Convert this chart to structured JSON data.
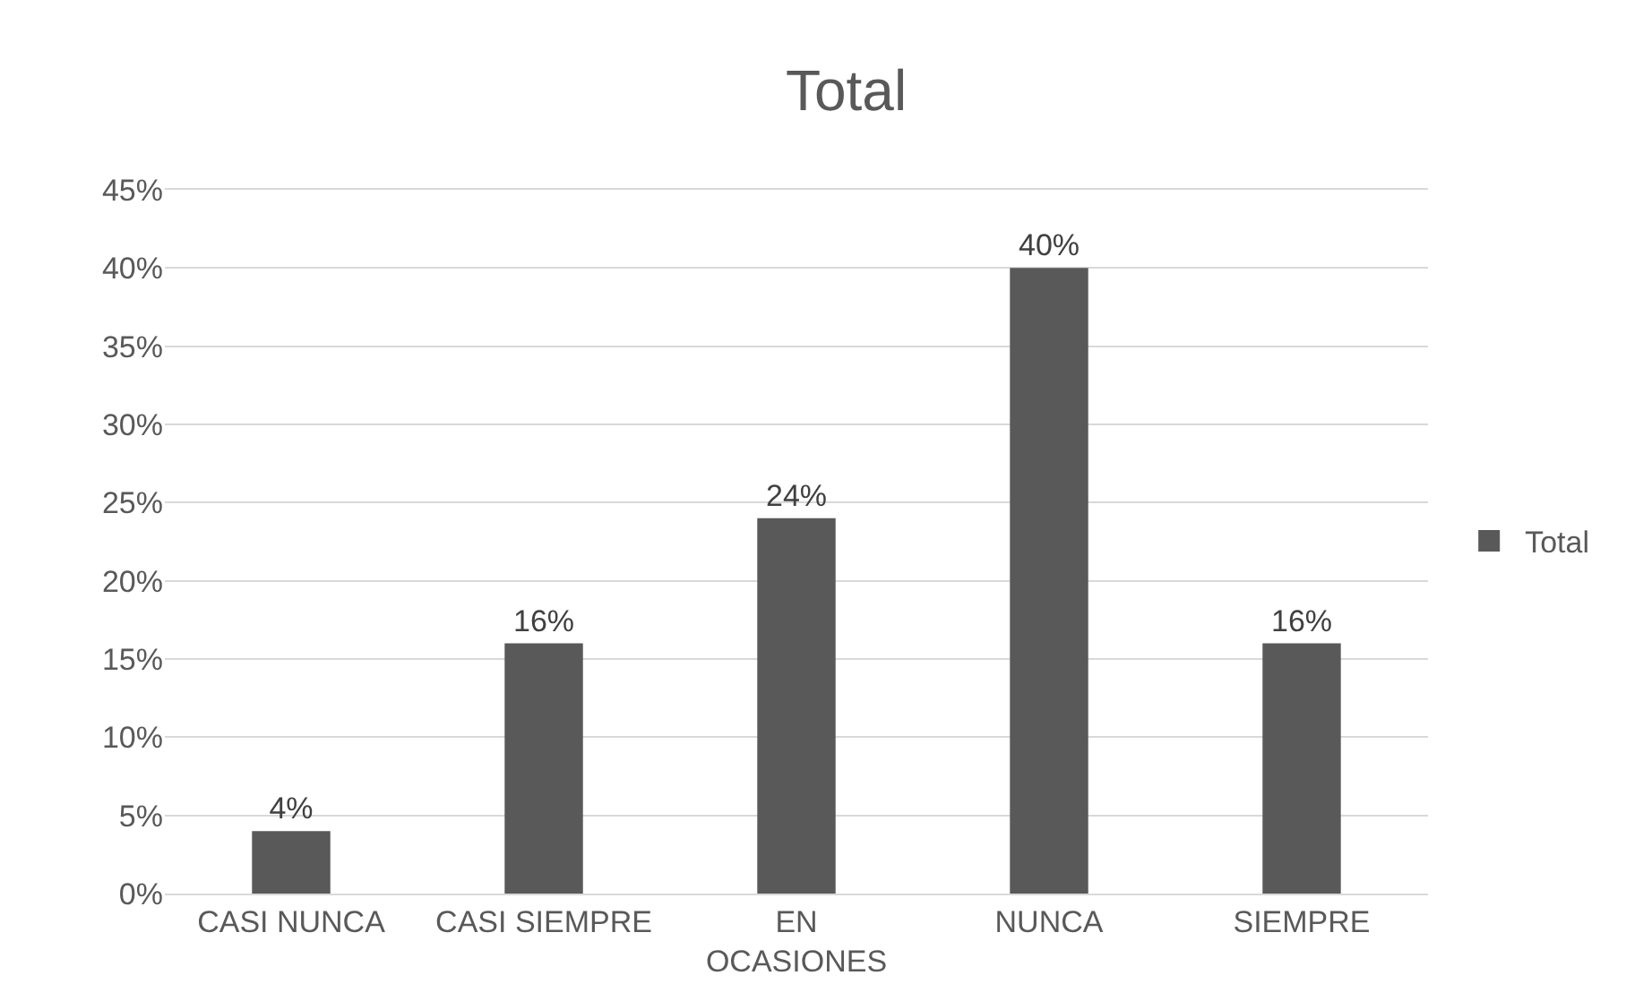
{
  "chart_data": {
    "type": "bar",
    "title": "Total",
    "categories": [
      "CASI NUNCA",
      "CASI SIEMPRE",
      "EN OCASIONES",
      "NUNCA",
      "SIEMPRE"
    ],
    "series": [
      {
        "name": "Total",
        "color": "#595959",
        "values": [
          4,
          16,
          24,
          40,
          16
        ],
        "value_labels": [
          "4%",
          "16%",
          "24%",
          "40%",
          "16%"
        ]
      }
    ],
    "ylim": [
      0,
      45
    ],
    "yticks": [
      {
        "value": 0,
        "label": "0%"
      },
      {
        "value": 5,
        "label": "5%"
      },
      {
        "value": 10,
        "label": "10%"
      },
      {
        "value": 15,
        "label": "15%"
      },
      {
        "value": 20,
        "label": "20%"
      },
      {
        "value": 25,
        "label": "25%"
      },
      {
        "value": 30,
        "label": "30%"
      },
      {
        "value": 35,
        "label": "35%"
      },
      {
        "value": 40,
        "label": "40%"
      },
      {
        "value": 45,
        "label": "45%"
      }
    ],
    "grid": "y",
    "legend": "right"
  }
}
